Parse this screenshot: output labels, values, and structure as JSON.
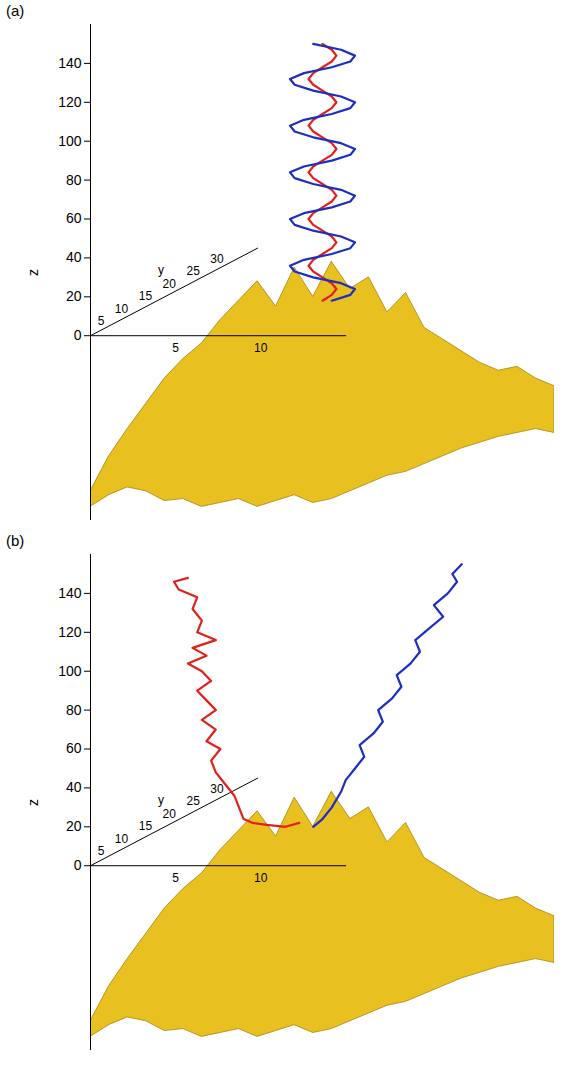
{
  "chart_data": [
    {
      "type": "line",
      "title": "(a)",
      "y_label": "z",
      "xlim": [
        0,
        100
      ],
      "ylim": [
        -95,
        160
      ],
      "yticks": [
        0,
        20,
        40,
        60,
        80,
        100,
        120,
        140
      ],
      "tick_labels": "y",
      "floor_axes": [
        {
          "label": "y",
          "ticks": [
            5,
            10,
            15,
            20,
            25,
            30
          ]
        },
        {
          "ticks": [
            5,
            10
          ]
        }
      ],
      "surface": {
        "color": "#e8c020",
        "x": [
          0,
          4,
          8,
          12,
          16,
          20,
          24,
          28,
          32,
          36,
          40,
          44,
          48,
          52,
          56,
          60,
          64,
          68,
          72,
          76,
          80,
          84,
          88,
          92,
          96,
          100
        ],
        "upper": [
          -80,
          -62,
          -48,
          -35,
          -22,
          -12,
          -4,
          8,
          18,
          28,
          15,
          35,
          20,
          38,
          24,
          30,
          12,
          22,
          4,
          -2,
          -8,
          -14,
          -18,
          -16,
          -22,
          -26
        ],
        "lower": [
          -88,
          -82,
          -78,
          -80,
          -85,
          -84,
          -88,
          -86,
          -84,
          -88,
          -85,
          -82,
          -86,
          -84,
          -80,
          -76,
          -72,
          -70,
          -66,
          -62,
          -58,
          -55,
          -52,
          -50,
          -48,
          -50
        ]
      },
      "series": [
        {
          "color": "#e0201b",
          "x": [
            50,
            52,
            53,
            52,
            50,
            48,
            47,
            48,
            50,
            52,
            53,
            52,
            50,
            48,
            47,
            48,
            50,
            52,
            53,
            52,
            50,
            48,
            47,
            48,
            50,
            52,
            53,
            52,
            50,
            48,
            47,
            48,
            50,
            52,
            53,
            52,
            50,
            48,
            47,
            48,
            50,
            52,
            53,
            52,
            50
          ],
          "values": [
            18,
            21,
            24,
            27,
            30,
            33,
            36,
            39,
            42,
            45,
            48,
            51,
            54,
            57,
            60,
            63,
            66,
            69,
            72,
            75,
            78,
            81,
            84,
            87,
            90,
            93,
            96,
            99,
            102,
            105,
            108,
            111,
            114,
            117,
            120,
            123,
            126,
            129,
            132,
            135,
            138,
            141,
            144,
            147,
            150
          ]
        },
        {
          "color": "#1c2fbf",
          "x": [
            52,
            56,
            57,
            54,
            48,
            44,
            43,
            46,
            52,
            56,
            57,
            54,
            48,
            44,
            43,
            46,
            52,
            56,
            57,
            54,
            48,
            44,
            43,
            46,
            52,
            56,
            57,
            54,
            48,
            44,
            43,
            46,
            52,
            56,
            57,
            54,
            48,
            44,
            43,
            46,
            52,
            56,
            57,
            54,
            48
          ],
          "values": [
            18,
            21,
            24,
            27,
            30,
            33,
            36,
            39,
            42,
            45,
            48,
            51,
            54,
            57,
            60,
            63,
            66,
            69,
            72,
            75,
            78,
            81,
            84,
            87,
            90,
            93,
            96,
            99,
            102,
            105,
            108,
            111,
            114,
            117,
            120,
            123,
            126,
            129,
            132,
            135,
            138,
            141,
            144,
            147,
            150
          ]
        }
      ]
    },
    {
      "type": "line",
      "title": "(b)",
      "y_label": "z",
      "xlim": [
        0,
        100
      ],
      "ylim": [
        -95,
        160
      ],
      "yticks": [
        0,
        20,
        40,
        60,
        80,
        100,
        120,
        140
      ],
      "tick_labels": "y",
      "floor_axes": [
        {
          "label": "y",
          "ticks": [
            5,
            10,
            15,
            20,
            25,
            30
          ]
        },
        {
          "ticks": [
            5,
            10
          ]
        }
      ],
      "surface": {
        "color": "#e8c020",
        "x": [
          0,
          4,
          8,
          12,
          16,
          20,
          24,
          28,
          32,
          36,
          40,
          44,
          48,
          52,
          56,
          60,
          64,
          68,
          72,
          76,
          80,
          84,
          88,
          92,
          96,
          100
        ],
        "upper": [
          -80,
          -62,
          -48,
          -35,
          -22,
          -12,
          -4,
          8,
          18,
          28,
          15,
          35,
          20,
          38,
          24,
          30,
          12,
          22,
          4,
          -2,
          -8,
          -14,
          -18,
          -16,
          -22,
          -26
        ],
        "lower": [
          -88,
          -82,
          -78,
          -80,
          -85,
          -84,
          -88,
          -86,
          -84,
          -88,
          -85,
          -82,
          -86,
          -84,
          -80,
          -76,
          -72,
          -70,
          -66,
          -62,
          -58,
          -55,
          -52,
          -50,
          -48,
          -50
        ]
      },
      "series": [
        {
          "color": "#e0201b",
          "x": [
            45,
            42,
            38,
            35,
            33,
            32,
            31,
            29,
            27,
            26,
            28,
            25,
            27,
            24,
            27,
            25,
            23,
            26,
            24,
            21,
            25,
            22,
            27,
            23,
            24,
            22,
            23,
            19,
            18,
            21
          ],
          "values": [
            22,
            20,
            21,
            22,
            24,
            30,
            36,
            42,
            48,
            54,
            60,
            64,
            70,
            75,
            80,
            85,
            90,
            95,
            100,
            104,
            108,
            112,
            116,
            120,
            126,
            132,
            138,
            142,
            146,
            148
          ]
        },
        {
          "color": "#1c2fbf",
          "x": [
            48,
            50,
            52,
            54,
            55,
            57,
            59,
            58,
            61,
            63,
            62,
            65,
            67,
            66,
            69,
            71,
            70,
            73,
            76,
            74,
            77,
            79,
            78,
            80
          ],
          "values": [
            20,
            24,
            30,
            38,
            44,
            50,
            56,
            62,
            68,
            74,
            80,
            86,
            92,
            98,
            104,
            110,
            116,
            122,
            128,
            134,
            140,
            146,
            150,
            155
          ]
        }
      ]
    }
  ]
}
